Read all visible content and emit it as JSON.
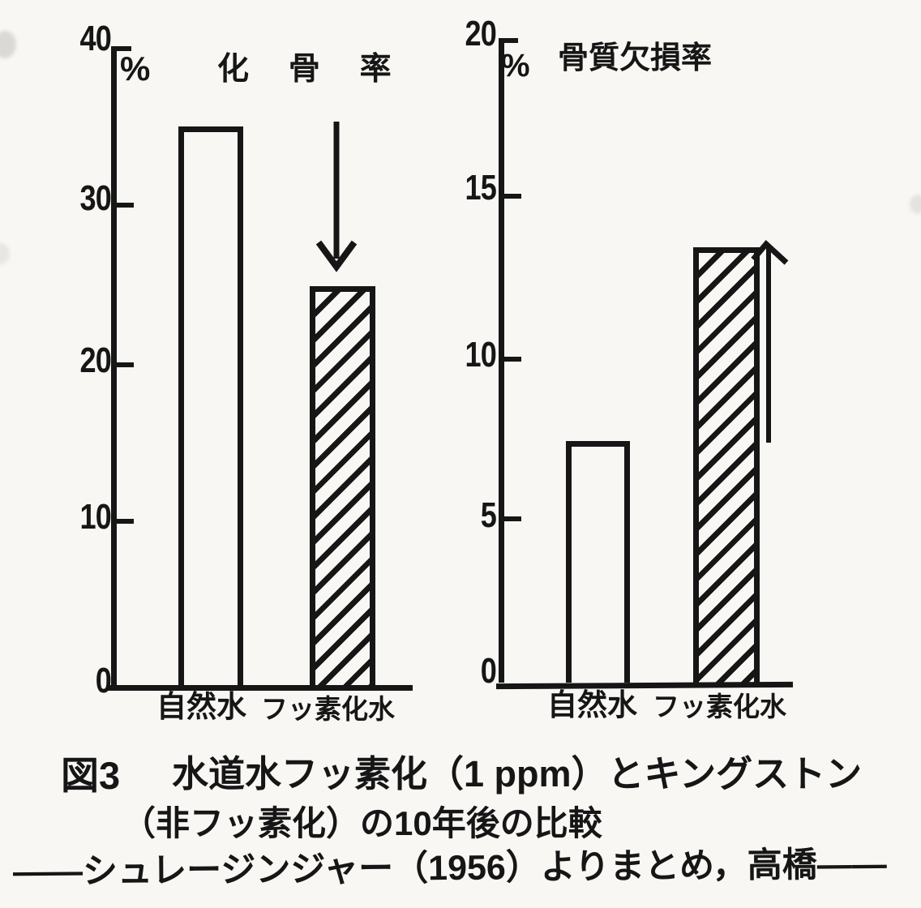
{
  "figure": {
    "caption_label": "図3",
    "caption_line1": "水道水フッ素化（1 ppm）とキングストン",
    "caption_line2": "（非フッ素化）の10年後の比較",
    "caption_line3": "——シュレージンジャー（1956）よりまとめ，高橋——"
  },
  "chart_data": [
    {
      "type": "bar",
      "title": "化 骨 率",
      "unit_label": "%",
      "categories": [
        "自然水",
        "フッ素化水"
      ],
      "values": [
        35,
        25
      ],
      "bar_styles": [
        "plain",
        "hatched"
      ],
      "ylim": [
        0,
        40
      ],
      "yticks": [
        0,
        10,
        20,
        30,
        40
      ],
      "grid": false,
      "legend": "none",
      "annotation": "down-arrow-over-fluoridated-bar"
    },
    {
      "type": "bar",
      "title": "骨質欠損率",
      "unit_label": "%",
      "categories": [
        "自然水",
        "フッ素化水"
      ],
      "values": [
        7.5,
        13.5
      ],
      "bar_styles": [
        "plain",
        "hatched"
      ],
      "ylim": [
        0,
        20
      ],
      "yticks": [
        0,
        5,
        10,
        15,
        20
      ],
      "grid": false,
      "legend": "none",
      "annotation": "up-arrow-beside-fluoridated-bar"
    }
  ],
  "colors": {
    "ink": "#161616",
    "paper": "#f8f7f4"
  }
}
